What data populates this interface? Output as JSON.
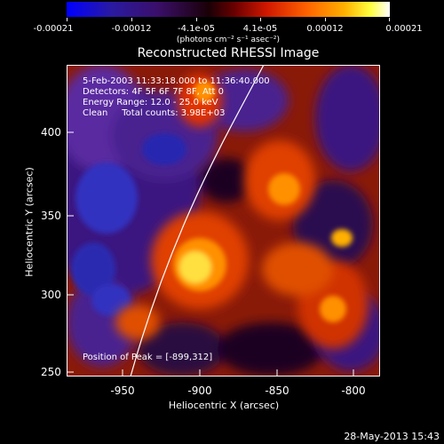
{
  "colorbar": {
    "tick_labels": [
      "-0.00021",
      "-0.00012",
      "-4.1e-05",
      "4.1e-05",
      "0.00012",
      "0.00021"
    ],
    "units": "(photons cm⁻² s⁻¹ asec⁻²)"
  },
  "title": "Reconstructed RHESSI Image",
  "annotation": {
    "line1": "5-Feb-2003 11:33:18.000 to 11:36:40.000",
    "line2": "Detectors: 4F 5F 6F 7F 8F, Att 0",
    "line3": "Energy Range: 12.0 - 25.0 keV",
    "line4": "Clean     Total counts: 3.98E+03"
  },
  "peak_text": "Position of Peak = [-899,312]",
  "axes": {
    "xlabel": "Heliocentric X (arcsec)",
    "ylabel": "Heliocentric Y (arcsec)",
    "xticks": [
      "-950",
      "-900",
      "-850",
      "-800"
    ],
    "yticks": [
      "400",
      "350",
      "300",
      "250"
    ]
  },
  "timestamp": "28-May-2013 15:43"
}
